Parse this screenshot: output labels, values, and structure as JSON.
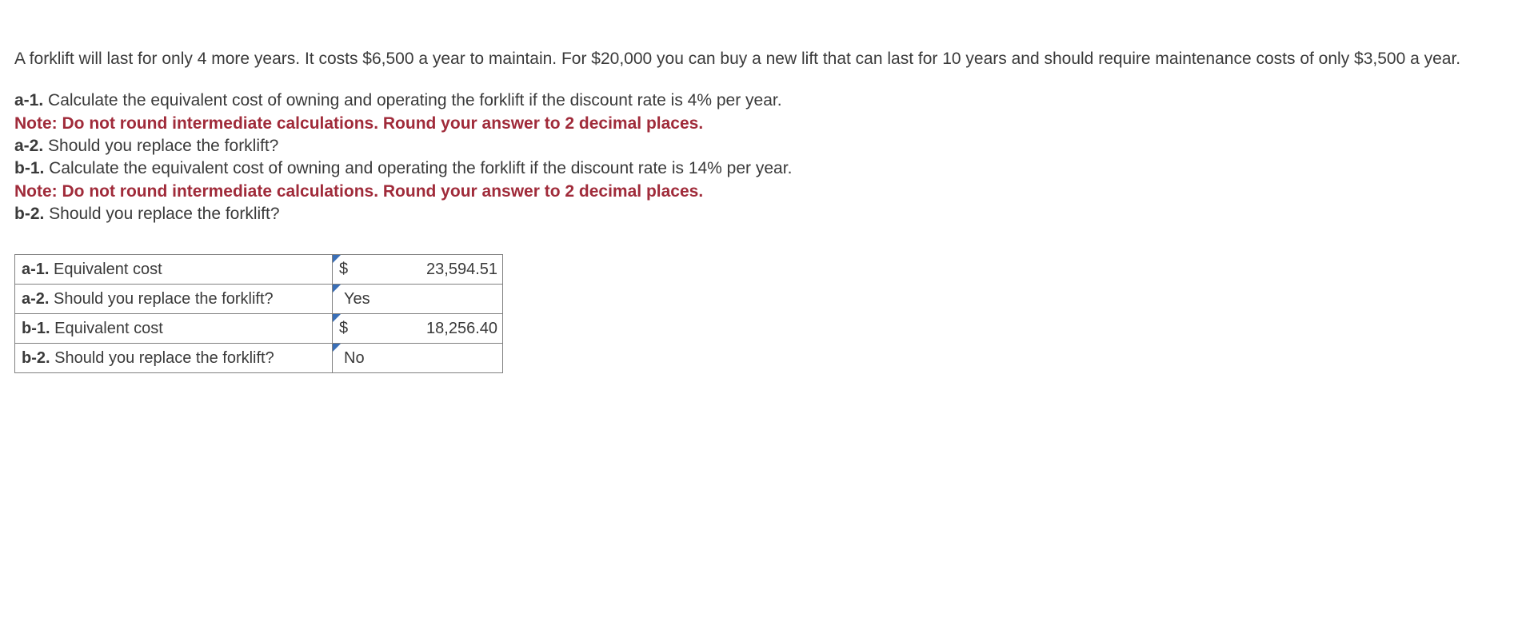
{
  "intro": "A forklift will last for only 4 more years. It costs $6,500 a year to maintain. For $20,000 you can buy a new lift that can last for 10 years and should require maintenance costs of only $3,500 a year.",
  "questions": {
    "a1": {
      "label": "a-1.",
      "text": " Calculate the equivalent cost of owning and operating the forklift if the discount rate is 4% per year."
    },
    "note1": "Note: Do not round intermediate calculations. Round your answer to 2 decimal places.",
    "a2": {
      "label": "a-2.",
      "text": " Should you replace the forklift?"
    },
    "b1": {
      "label": "b-1.",
      "text": " Calculate the equivalent cost of owning and operating the forklift if the discount rate is 14% per year."
    },
    "note2": "Note: Do not round intermediate calculations. Round your answer to 2 decimal places.",
    "b2": {
      "label": "b-2.",
      "text": " Should you replace the forklift?"
    }
  },
  "answers": {
    "rows": [
      {
        "label_bold": "a-1.",
        "label_rest": " Equivalent cost",
        "currency": "$",
        "value": "23,594.51",
        "type": "num"
      },
      {
        "label_bold": "a-2.",
        "label_rest": " Should you replace the forklift?",
        "value": "Yes",
        "type": "txt"
      },
      {
        "label_bold": "b-1.",
        "label_rest": " Equivalent cost",
        "currency": "$",
        "value": "18,256.40",
        "type": "num"
      },
      {
        "label_bold": "b-2.",
        "label_rest": " Should you replace the forklift?",
        "value": "No",
        "type": "txt"
      }
    ]
  }
}
